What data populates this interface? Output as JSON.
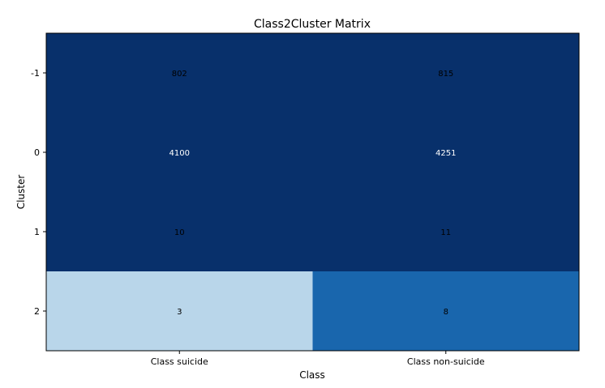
{
  "chart_data": {
    "type": "heatmap",
    "title": "Class2Cluster Matrix",
    "xlabel": "Class",
    "ylabel": "Cluster",
    "x_categories": [
      "Class suicide",
      "Class non-suicide"
    ],
    "y_categories": [
      "-1",
      "0",
      "1",
      "2"
    ],
    "values": [
      [
        802,
        815
      ],
      [
        4100,
        4251
      ],
      [
        10,
        11
      ],
      [
        3,
        8
      ]
    ],
    "cell_colors": [
      [
        "#08306b",
        "#08306b"
      ],
      [
        "#08306b",
        "#08306b"
      ],
      [
        "#08306b",
        "#08306b"
      ],
      [
        "#b9d6ea",
        "#1966ad"
      ]
    ],
    "label_colors": [
      [
        "#000000",
        "#000000"
      ],
      [
        "#ffffff",
        "#ffffff"
      ],
      [
        "#000000",
        "#000000"
      ],
      [
        "#000000",
        "#000000"
      ]
    ],
    "colormap": "Blues",
    "grid": false,
    "legend": "none"
  }
}
